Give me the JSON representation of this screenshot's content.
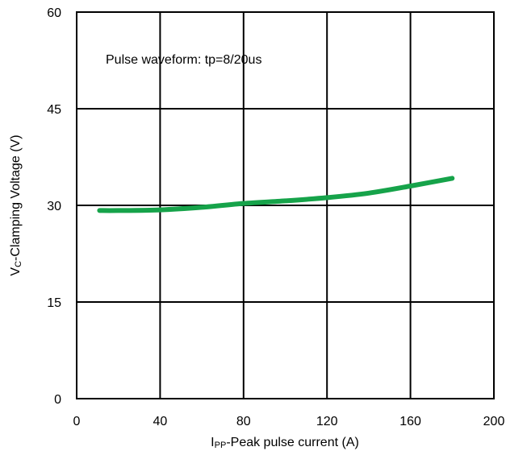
{
  "chart_data": {
    "type": "line",
    "title": "",
    "annotation": "Pulse waveform: tp=8/20us",
    "xlabel": {
      "main": "I",
      "subscript": "PP",
      "rest": "-Peak pulse current (A)"
    },
    "ylabel": {
      "main": "V",
      "subscript": "C",
      "rest": "-Clamping Voltage (V)"
    },
    "xlim": [
      0,
      200
    ],
    "ylim": [
      0,
      60
    ],
    "xticks": [
      0,
      40,
      80,
      120,
      160,
      200
    ],
    "yticks": [
      0,
      15,
      30,
      45,
      60
    ],
    "grid": true,
    "series": [
      {
        "color": "#16a34a",
        "x": [
          11,
          20,
          40,
          60,
          80,
          100,
          120,
          140,
          160,
          180
        ],
        "y": [
          29.2,
          29.2,
          29.3,
          29.7,
          30.3,
          30.7,
          31.2,
          31.9,
          33.0,
          34.2
        ]
      }
    ]
  }
}
